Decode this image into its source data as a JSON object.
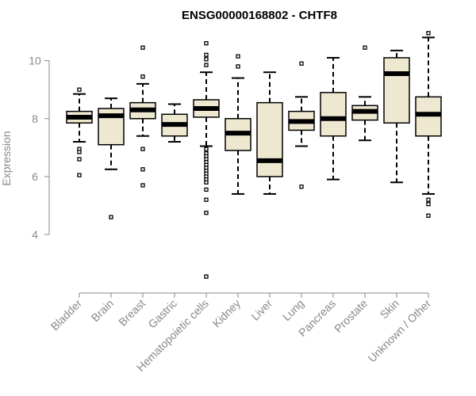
{
  "chart_data": {
    "type": "box",
    "title": "ENSG00000168802 - CHTF8",
    "ylabel": "Expression",
    "xlabel": "",
    "ylim": [
      2.2,
      11.0
    ],
    "yticks": [
      4,
      6,
      8,
      10
    ],
    "box_fill": "#efe8d0",
    "box_stroke": "#000000",
    "axis_color": "#888888",
    "categories": [
      "Bladder",
      "Brain",
      "Breast",
      "Gastric",
      "Hematopoietic cells",
      "Kidney",
      "Liver",
      "Lung",
      "Pancreas",
      "Prostate",
      "Skin",
      "Unknown / Other"
    ],
    "boxes": [
      {
        "name": "Bladder",
        "whislo": 7.2,
        "q1": 7.85,
        "med": 8.05,
        "q3": 8.25,
        "whishi": 8.85,
        "fliers": [
          9.0,
          6.95,
          6.85,
          6.6,
          6.05
        ]
      },
      {
        "name": "Brain",
        "whislo": 6.25,
        "q1": 7.1,
        "med": 8.1,
        "q3": 8.35,
        "whishi": 8.7,
        "fliers": [
          4.6
        ]
      },
      {
        "name": "Breast",
        "whislo": 7.4,
        "q1": 8.0,
        "med": 8.3,
        "q3": 8.55,
        "whishi": 9.2,
        "fliers": [
          10.45,
          9.45,
          6.95,
          6.25,
          5.7
        ]
      },
      {
        "name": "Gastric",
        "whislo": 7.2,
        "q1": 7.4,
        "med": 7.8,
        "q3": 8.15,
        "whishi": 8.5,
        "fliers": []
      },
      {
        "name": "Hematopoietic cells",
        "whislo": 7.05,
        "q1": 8.05,
        "med": 8.35,
        "q3": 8.65,
        "whishi": 9.6,
        "fliers": [
          10.6,
          10.2,
          10.05,
          9.85,
          6.95,
          6.8,
          6.7,
          6.6,
          6.5,
          6.4,
          6.3,
          6.2,
          6.1,
          6.0,
          5.9,
          5.8,
          5.55,
          5.2,
          4.75,
          2.55
        ]
      },
      {
        "name": "Kidney",
        "whislo": 5.4,
        "q1": 6.9,
        "med": 7.5,
        "q3": 8.0,
        "whishi": 9.4,
        "fliers": [
          10.15,
          9.8
        ]
      },
      {
        "name": "Liver",
        "whislo": 5.4,
        "q1": 6.0,
        "med": 6.55,
        "q3": 8.55,
        "whishi": 9.6,
        "fliers": []
      },
      {
        "name": "Lung",
        "whislo": 7.05,
        "q1": 7.6,
        "med": 7.9,
        "q3": 8.25,
        "whishi": 8.75,
        "fliers": [
          9.9,
          5.65
        ]
      },
      {
        "name": "Pancreas",
        "whislo": 5.9,
        "q1": 7.4,
        "med": 8.0,
        "q3": 8.9,
        "whishi": 10.1,
        "fliers": []
      },
      {
        "name": "Prostate",
        "whislo": 7.25,
        "q1": 7.95,
        "med": 8.25,
        "q3": 8.45,
        "whishi": 8.75,
        "fliers": [
          10.45
        ]
      },
      {
        "name": "Skin",
        "whislo": 5.8,
        "q1": 7.85,
        "med": 9.55,
        "q3": 10.1,
        "whishi": 10.35,
        "fliers": []
      },
      {
        "name": "Unknown / Other",
        "whislo": 5.4,
        "q1": 7.4,
        "med": 8.15,
        "q3": 8.75,
        "whishi": 10.8,
        "fliers": [
          10.95,
          5.2,
          5.05,
          4.65
        ]
      }
    ]
  }
}
